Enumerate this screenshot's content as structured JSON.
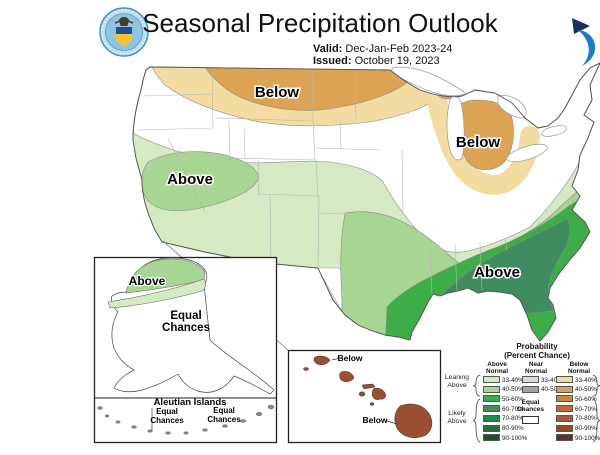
{
  "header": {
    "title": "Seasonal Precipitation Outlook",
    "valid_label": "Valid:",
    "valid_value": "Dec-Jan-Feb 2023-24",
    "issued_label": "Issued:",
    "issued_value": "October 19, 2023"
  },
  "map": {
    "labels": {
      "plains_below": "Below",
      "lakes_below": "Below",
      "west_above": "Above",
      "southeast_above": "Above"
    },
    "regions": [
      {
        "area": "Northern Plains / Montana / Dakotas",
        "outlook": "Below",
        "probability": "40-50%"
      },
      {
        "area": "Northern tier band (Pacific NW to Upper Midwest)",
        "outlook": "Below",
        "probability": "33-40%"
      },
      {
        "area": "Michigan / Great Lakes",
        "outlook": "Below",
        "probability": "40-50%"
      },
      {
        "area": "California",
        "outlook": "Above",
        "probability": "40-50%"
      },
      {
        "area": "Southern tier from Southwest through Gulf states to mid-Atlantic",
        "outlook": "Above",
        "probability": "33-50%"
      },
      {
        "area": "Gulf Coast / Carolinas",
        "outlook": "Above",
        "probability": "50-60%"
      },
      {
        "area": "Southeast core (Georgia / northern Florida)",
        "outlook": "Above",
        "probability": "60-70%"
      },
      {
        "area": "Central U.S. and interior Northeast",
        "outlook": "Equal Chances",
        "probability": ""
      }
    ]
  },
  "alaska_inset": {
    "label_above": "Above",
    "label_equal_line1": "Equal",
    "label_equal_line2": "Chances",
    "aleutian_title": "Aleutian Islands",
    "aleutian_left_line1": "Equal",
    "aleutian_left_line2": "Chances",
    "aleutian_right_line1": "Equal",
    "aleutian_right_line2": "Chances"
  },
  "hawaii_inset": {
    "label_top": "Below",
    "label_bottom": "Below",
    "island_color": "#9C4E30"
  },
  "legend": {
    "title_line1": "Probability",
    "title_line2": "(Percent Chance)",
    "col_above_header": "Above Normal",
    "col_near_header": "Near Normal",
    "col_below_header": "Below Normal",
    "above": [
      {
        "range": "33-40%",
        "color": "#D5EAC3"
      },
      {
        "range": "40-50%",
        "color": "#A7D593"
      },
      {
        "range": "50-60%",
        "color": "#3DAE47"
      },
      {
        "range": "60-70%",
        "color": "#3F8C61"
      },
      {
        "range": "70-80%",
        "color": "#1E8A4E"
      },
      {
        "range": "80-90%",
        "color": "#2E6B3C"
      },
      {
        "range": "90-100%",
        "color": "#1C4F2A"
      }
    ],
    "near": [
      {
        "range": "33-40%",
        "color": "#DBDBDB"
      },
      {
        "range": "40-50%",
        "color": "#A3A3A3"
      }
    ],
    "below": [
      {
        "range": "33-40%",
        "color": "#F2DCA2"
      },
      {
        "range": "40-50%",
        "color": "#DCA355"
      },
      {
        "range": "50-60%",
        "color": "#CC853C"
      },
      {
        "range": "60-70%",
        "color": "#C3683A"
      },
      {
        "range": "70-80%",
        "color": "#A85C3E"
      },
      {
        "range": "80-90%",
        "color": "#96491D"
      },
      {
        "range": "90-100%",
        "color": "#5F3327"
      }
    ],
    "equal_chances_label_line1": "Equal",
    "equal_chances_label_line2": "Chances",
    "equal_chances_color": "#FFFFFF",
    "bracket_leaning_above_line1": "Leaning",
    "bracket_leaning_above_line2": "Above",
    "bracket_likely_above_line1": "Likely",
    "bracket_likely_above_line2": "Above"
  }
}
